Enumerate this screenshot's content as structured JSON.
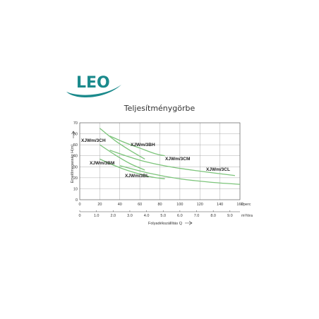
{
  "logo": {
    "text": "LEO",
    "color": "#1b8a8c"
  },
  "chart_data": {
    "type": "line",
    "title": "Teljesítménygörbe",
    "ylabel": "Emelőmagasság H(m)",
    "xlabel": "Folyadékszállítás Q",
    "x_unit": "l/perc",
    "x2_unit": "m³/óra",
    "ylim": [
      0,
      70
    ],
    "xlim": [
      0,
      160
    ],
    "y_ticks": [
      "0",
      "10",
      "20",
      "30",
      "40",
      "50",
      "60",
      "70"
    ],
    "x_ticks": [
      "0",
      "20",
      "40",
      "60",
      "80",
      "100",
      "120",
      "140",
      "160"
    ],
    "x2_ticks": [
      "0",
      "1.0",
      "2.0",
      "3.0",
      "4.0",
      "5.0",
      "6.0",
      "7.0",
      "8.0",
      "9.0"
    ],
    "grid": true,
    "line_color": "#7cc47a",
    "series": [
      {
        "name": "XJWm/3CH",
        "x": [
          20,
          35,
          50,
          65
        ],
        "y": [
          65,
          54,
          45,
          37
        ]
      },
      {
        "name": "XJWm/3BH",
        "x": [
          30,
          45,
          60,
          75,
          85
        ],
        "y": [
          58,
          52,
          47,
          42,
          40
        ]
      },
      {
        "name": "XJWm/3CM",
        "x": [
          20,
          35,
          50,
          65
        ],
        "y": [
          50,
          41,
          33,
          27
        ]
      },
      {
        "name": "XJWm/3BM",
        "x": [
          30,
          60,
          90,
          120,
          155
        ],
        "y": [
          45,
          36,
          30,
          26,
          22
        ]
      },
      {
        "name": "XJWm/3CL",
        "x": [
          20,
          35,
          50,
          70,
          85
        ],
        "y": [
          37,
          31,
          26,
          21,
          19
        ]
      },
      {
        "name": "XJWm/3BL",
        "x": [
          40,
          70,
          100,
          130,
          160
        ],
        "y": [
          31,
          24,
          19,
          16,
          14
        ]
      }
    ]
  }
}
